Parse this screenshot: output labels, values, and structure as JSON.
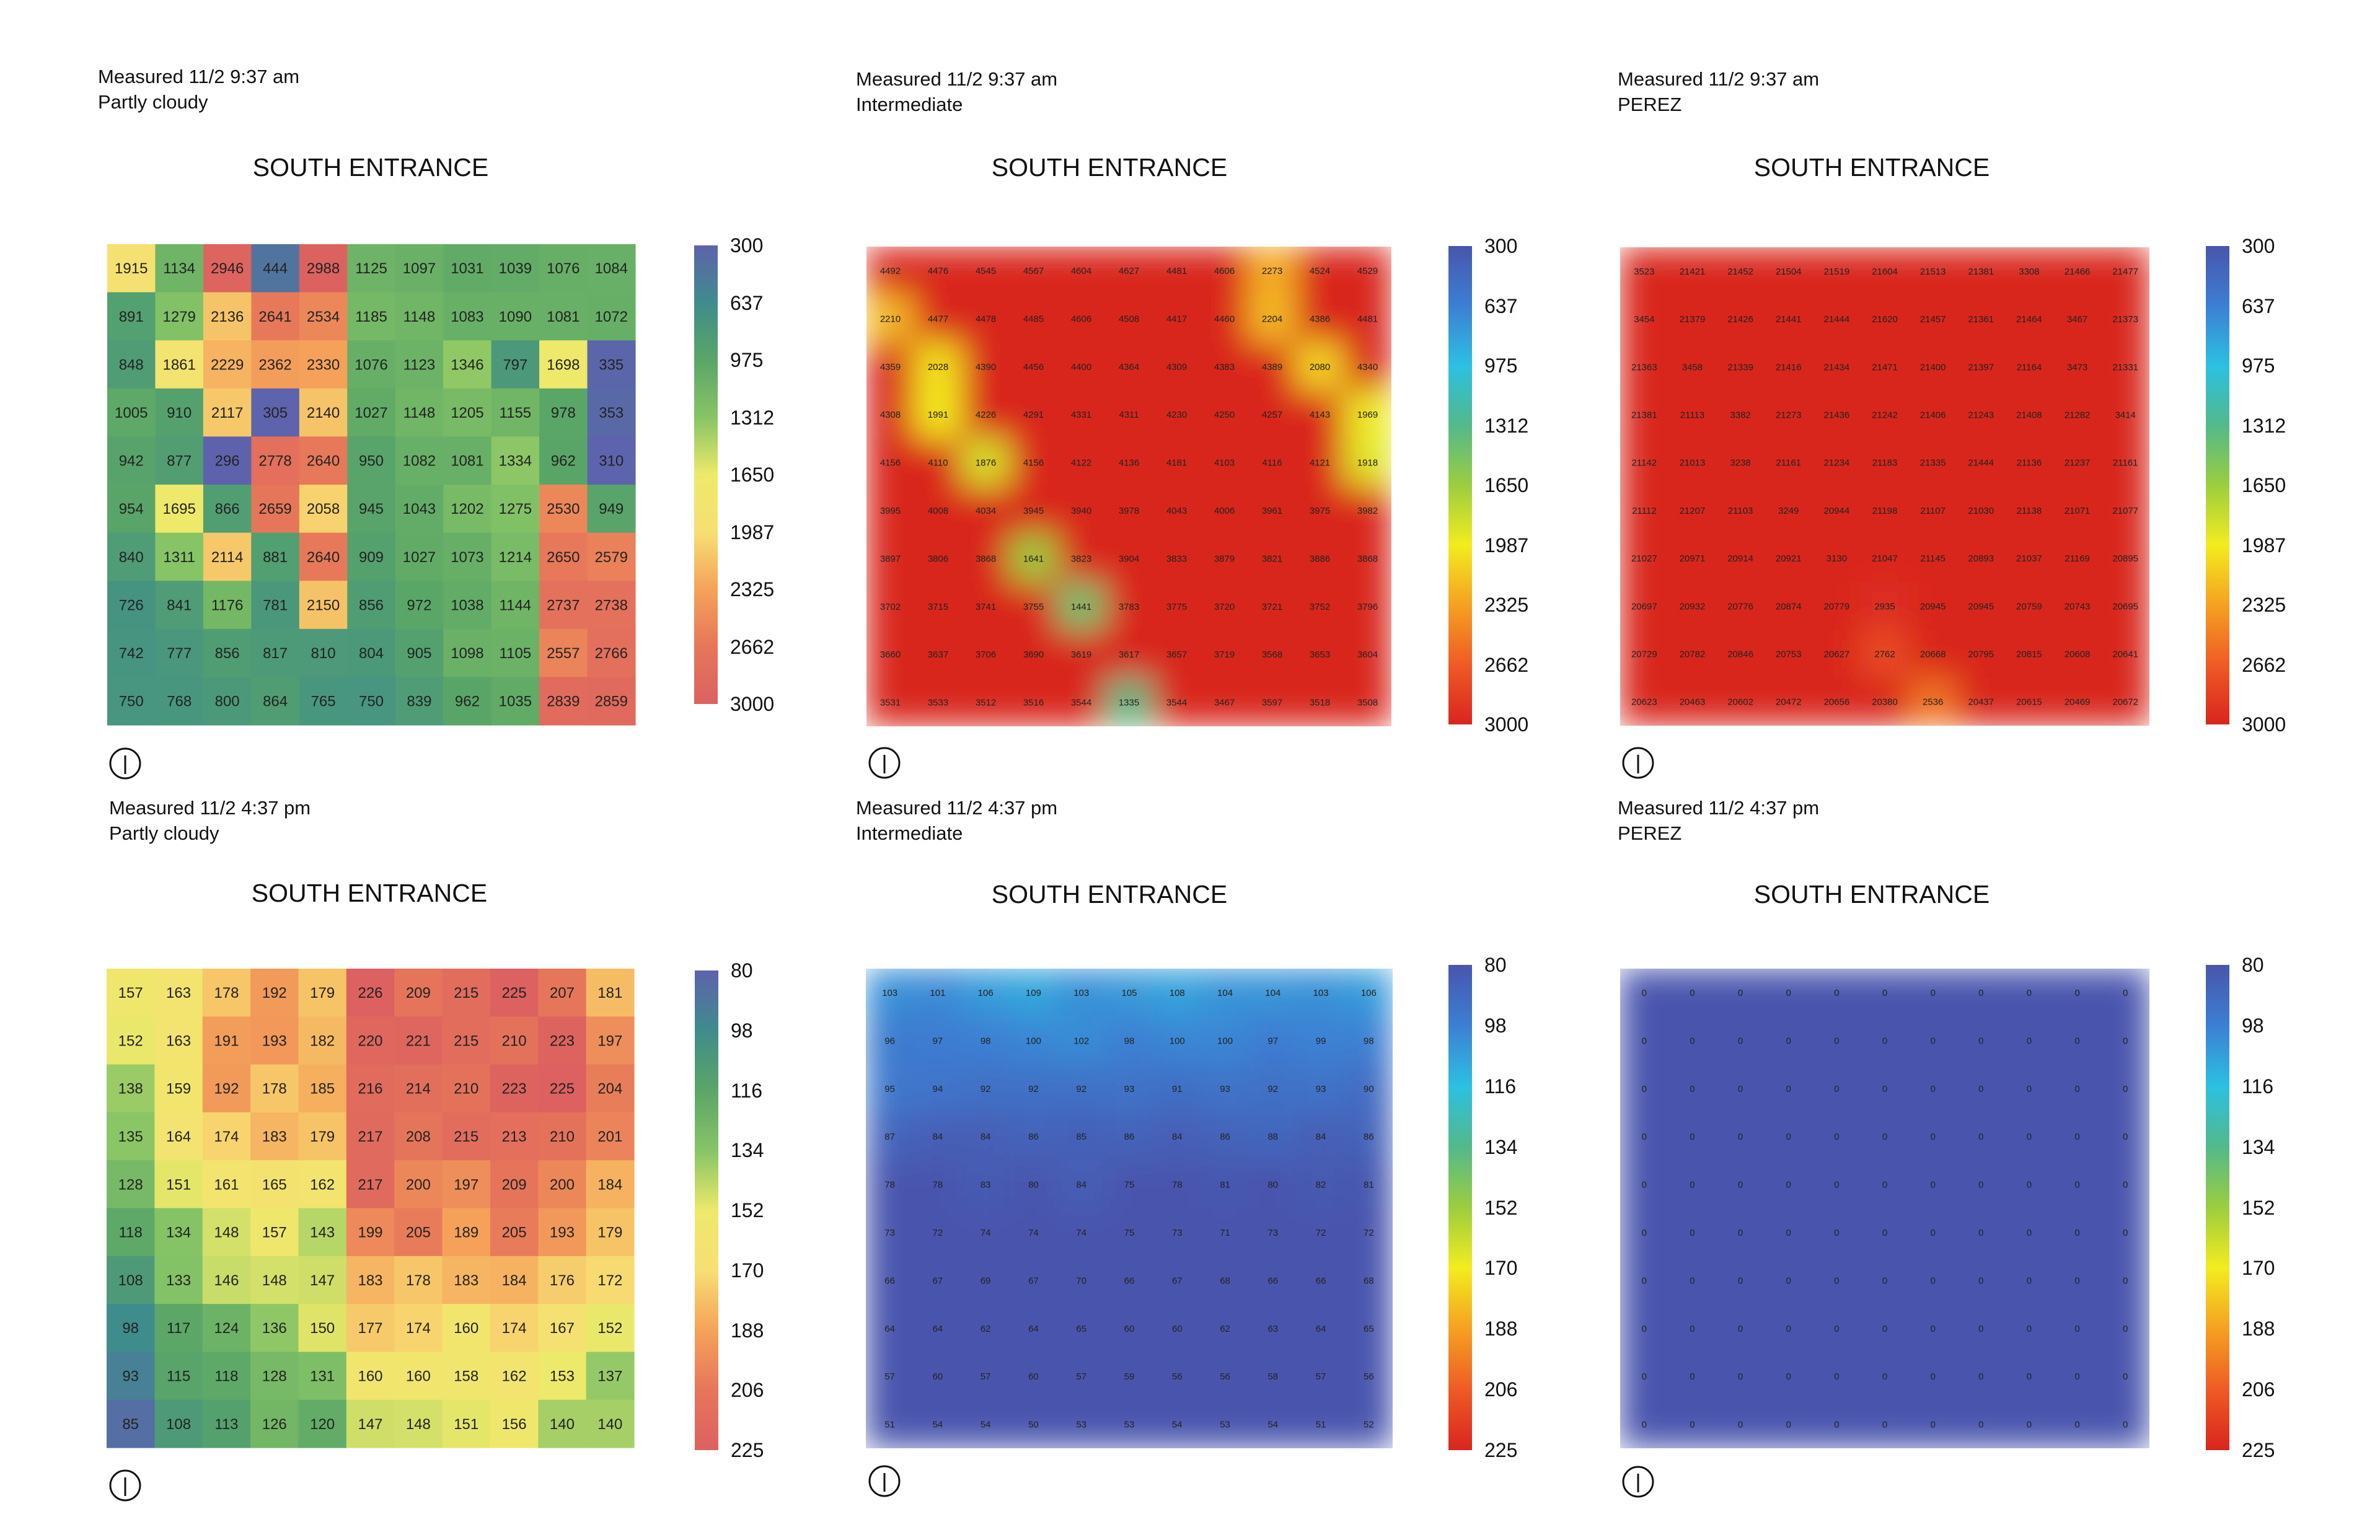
{
  "panels": [
    {
      "measured": "Measured 11/2 9:37 am",
      "condition": "Partly cloudy",
      "title": "SOUTH ENTRANCE",
      "legend_ticks": [
        "300",
        "637",
        "975",
        "1312",
        "1650",
        "1987",
        "2325",
        "2662",
        "3000"
      ],
      "palette": "spectral",
      "rendering": "blocky",
      "chart_data": {
        "type": "heatmap",
        "title": "SOUTH ENTRANCE",
        "vmin": 300,
        "vmax": 3000,
        "reversed_scale": true,
        "values": [
          [
            1915,
            1134,
            2946,
            444,
            2988,
            1125,
            1097,
            1031,
            1039,
            1076,
            1084
          ],
          [
            891,
            1279,
            2136,
            2641,
            2534,
            1185,
            1148,
            1083,
            1090,
            1081,
            1072
          ],
          [
            848,
            1861,
            2229,
            2362,
            2330,
            1076,
            1123,
            1346,
            797,
            1698,
            335
          ],
          [
            1005,
            910,
            2117,
            305,
            2140,
            1027,
            1148,
            1205,
            1155,
            978,
            353
          ],
          [
            942,
            877,
            296,
            2778,
            2640,
            950,
            1082,
            1081,
            1334,
            962,
            310
          ],
          [
            954,
            1695,
            866,
            2659,
            2058,
            945,
            1043,
            1202,
            1275,
            2530,
            949
          ],
          [
            840,
            1311,
            2114,
            881,
            2640,
            909,
            1027,
            1073,
            1214,
            2650,
            2579
          ],
          [
            726,
            841,
            1176,
            781,
            2150,
            856,
            972,
            1038,
            1144,
            2737,
            2738
          ],
          [
            742,
            777,
            856,
            817,
            810,
            804,
            905,
            1098,
            1105,
            2557,
            2766
          ],
          [
            750,
            768,
            800,
            864,
            765,
            750,
            839,
            962,
            1035,
            2839,
            2859
          ]
        ]
      }
    },
    {
      "measured": "Measured 11/2 9:37 am",
      "condition": "Intermediate",
      "title": "SOUTH ENTRANCE",
      "legend_ticks": [
        "300",
        "637",
        "975",
        "1312",
        "1650",
        "1987",
        "2325",
        "2662",
        "3000"
      ],
      "palette": "rainbow",
      "rendering": "smooth",
      "chart_data": {
        "type": "heatmap",
        "title": "SOUTH ENTRANCE",
        "vmin": 300,
        "vmax": 3000,
        "reversed_scale": true,
        "values": [
          [
            4492,
            4476,
            4545,
            4567,
            4604,
            4627,
            4481,
            4606,
            2273,
            4524,
            4529
          ],
          [
            2210,
            4477,
            4478,
            4485,
            4606,
            4508,
            4417,
            4460,
            2204,
            4386,
            4481
          ],
          [
            4359,
            2028,
            4390,
            4456,
            4400,
            4364,
            4309,
            4383,
            4389,
            2080,
            4340
          ],
          [
            4308,
            1991,
            4226,
            4291,
            4331,
            4311,
            4230,
            4250,
            4257,
            4143,
            1969
          ],
          [
            4156,
            4110,
            1876,
            4156,
            4122,
            4136,
            4181,
            4103,
            4116,
            4121,
            1918
          ],
          [
            3995,
            4008,
            4034,
            3945,
            3940,
            3978,
            4043,
            4006,
            3961,
            3975,
            3982
          ],
          [
            3897,
            3806,
            3868,
            1641,
            3823,
            3904,
            3833,
            3879,
            3821,
            3886,
            3868
          ],
          [
            3702,
            3715,
            3741,
            3755,
            1441,
            3783,
            3775,
            3720,
            3721,
            3752,
            3796
          ],
          [
            3660,
            3637,
            3706,
            3690,
            3619,
            3617,
            3657,
            3719,
            3568,
            3653,
            3604
          ],
          [
            3531,
            3533,
            3512,
            3516,
            3544,
            1335,
            3544,
            3467,
            3597,
            3518,
            3508
          ]
        ]
      }
    },
    {
      "measured": "Measured 11/2 9:37 am",
      "condition": "PEREZ",
      "title": "SOUTH ENTRANCE",
      "legend_ticks": [
        "300",
        "637",
        "975",
        "1312",
        "1650",
        "1987",
        "2325",
        "2662",
        "3000"
      ],
      "palette": "rainbow",
      "rendering": "smooth",
      "chart_data": {
        "type": "heatmap",
        "title": "SOUTH ENTRANCE",
        "vmin": 300,
        "vmax": 3000,
        "reversed_scale": true,
        "values": [
          [
            3523,
            21421,
            21452,
            21504,
            21519,
            21604,
            21513,
            21381,
            3308,
            21466,
            21477
          ],
          [
            3454,
            21379,
            21426,
            21441,
            21444,
            21620,
            21457,
            21361,
            21464,
            3467,
            21373
          ],
          [
            21363,
            3458,
            21339,
            21416,
            21434,
            21471,
            21400,
            21397,
            21164,
            3473,
            21331
          ],
          [
            21381,
            21113,
            3382,
            21273,
            21436,
            21242,
            21406,
            21243,
            21408,
            21282,
            3414
          ],
          [
            21142,
            21013,
            3238,
            21161,
            21234,
            21183,
            21335,
            21444,
            21136,
            21237,
            21161
          ],
          [
            21112,
            21207,
            21103,
            3249,
            20944,
            21198,
            21107,
            21030,
            21138,
            21071,
            21077
          ],
          [
            21027,
            20971,
            20914,
            20921,
            3130,
            21047,
            21145,
            20893,
            21037,
            21169,
            20895
          ],
          [
            20697,
            20932,
            20776,
            20874,
            20779,
            2935,
            20945,
            20945,
            20759,
            20743,
            20695
          ],
          [
            20729,
            20782,
            20846,
            20753,
            20627,
            2762,
            20668,
            20795,
            20815,
            20608,
            20641
          ],
          [
            20623,
            20463,
            20602,
            20472,
            20656,
            20380,
            2536,
            20437,
            20615,
            20469,
            20672
          ]
        ]
      }
    },
    {
      "measured": "Measured 11/2 4:37 pm",
      "condition": "Partly cloudy",
      "title": "SOUTH ENTRANCE",
      "legend_ticks": [
        "80",
        "98",
        "116",
        "134",
        "152",
        "170",
        "188",
        "206",
        "225"
      ],
      "palette": "spectral",
      "rendering": "blocky",
      "chart_data": {
        "type": "heatmap",
        "title": "SOUTH ENTRANCE",
        "vmin": 80,
        "vmax": 225,
        "reversed_scale": true,
        "values": [
          [
            157,
            163,
            178,
            192,
            179,
            226,
            209,
            215,
            225,
            207,
            181
          ],
          [
            152,
            163,
            191,
            193,
            182,
            220,
            221,
            215,
            210,
            223,
            197
          ],
          [
            138,
            159,
            192,
            178,
            185,
            216,
            214,
            210,
            223,
            225,
            204
          ],
          [
            135,
            164,
            174,
            183,
            179,
            217,
            208,
            215,
            213,
            210,
            201
          ],
          [
            128,
            151,
            161,
            165,
            162,
            217,
            200,
            197,
            209,
            200,
            184
          ],
          [
            118,
            134,
            148,
            157,
            143,
            199,
            205,
            189,
            205,
            193,
            179
          ],
          [
            108,
            133,
            146,
            148,
            147,
            183,
            178,
            183,
            184,
            176,
            172
          ],
          [
            98,
            117,
            124,
            136,
            150,
            177,
            174,
            160,
            174,
            167,
            152
          ],
          [
            93,
            115,
            118,
            128,
            131,
            160,
            160,
            158,
            162,
            153,
            137
          ],
          [
            85,
            108,
            113,
            126,
            120,
            147,
            148,
            151,
            156,
            140,
            140
          ]
        ]
      }
    },
    {
      "measured": "Measured 11/2 4:37 pm",
      "condition": "Intermediate",
      "title": "SOUTH ENTRANCE",
      "legend_ticks": [
        "80",
        "98",
        "116",
        "134",
        "152",
        "170",
        "188",
        "206",
        "225"
      ],
      "palette": "rainbow",
      "rendering": "smooth",
      "chart_data": {
        "type": "heatmap",
        "title": "SOUTH ENTRANCE",
        "vmin": 80,
        "vmax": 225,
        "reversed_scale": true,
        "values": [
          [
            103,
            101,
            106,
            109,
            103,
            105,
            108,
            104,
            104,
            103,
            106
          ],
          [
            96,
            97,
            98,
            100,
            102,
            98,
            100,
            100,
            97,
            99,
            98
          ],
          [
            95,
            94,
            92,
            92,
            92,
            93,
            91,
            93,
            92,
            93,
            90
          ],
          [
            87,
            84,
            84,
            86,
            85,
            86,
            84,
            86,
            88,
            84,
            86
          ],
          [
            78,
            78,
            83,
            80,
            84,
            75,
            78,
            81,
            80,
            82,
            81
          ],
          [
            73,
            72,
            74,
            74,
            74,
            75,
            73,
            71,
            73,
            72,
            72
          ],
          [
            66,
            67,
            69,
            67,
            70,
            66,
            67,
            68,
            66,
            66,
            68
          ],
          [
            64,
            64,
            62,
            64,
            65,
            60,
            60,
            62,
            63,
            64,
            65
          ],
          [
            57,
            60,
            57,
            60,
            57,
            59,
            56,
            56,
            58,
            57,
            56
          ],
          [
            51,
            54,
            54,
            50,
            53,
            53,
            54,
            53,
            54,
            51,
            52
          ]
        ]
      }
    },
    {
      "measured": "Measured 11/2 4:37 pm",
      "condition": "PEREZ",
      "title": "SOUTH ENTRANCE",
      "legend_ticks": [
        "80",
        "98",
        "116",
        "134",
        "152",
        "170",
        "188",
        "206",
        "225"
      ],
      "palette": "rainbow",
      "rendering": "smooth",
      "chart_data": {
        "type": "heatmap",
        "title": "SOUTH ENTRANCE",
        "vmin": 80,
        "vmax": 225,
        "reversed_scale": true,
        "values": [
          [
            0,
            0,
            0,
            0,
            0,
            0,
            0,
            0,
            0,
            0,
            0
          ],
          [
            0,
            0,
            0,
            0,
            0,
            0,
            0,
            0,
            0,
            0,
            0
          ],
          [
            0,
            0,
            0,
            0,
            0,
            0,
            0,
            0,
            0,
            0,
            0
          ],
          [
            0,
            0,
            0,
            0,
            0,
            0,
            0,
            0,
            0,
            0,
            0
          ],
          [
            0,
            0,
            0,
            0,
            0,
            0,
            0,
            0,
            0,
            0,
            0
          ],
          [
            0,
            0,
            0,
            0,
            0,
            0,
            0,
            0,
            0,
            0,
            0
          ],
          [
            0,
            0,
            0,
            0,
            0,
            0,
            0,
            0,
            0,
            0,
            0
          ],
          [
            0,
            0,
            0,
            0,
            0,
            0,
            0,
            0,
            0,
            0,
            0
          ],
          [
            0,
            0,
            0,
            0,
            0,
            0,
            0,
            0,
            0,
            0,
            0
          ],
          [
            0,
            0,
            0,
            0,
            0,
            0,
            0,
            0,
            0,
            0,
            0
          ]
        ]
      }
    }
  ]
}
